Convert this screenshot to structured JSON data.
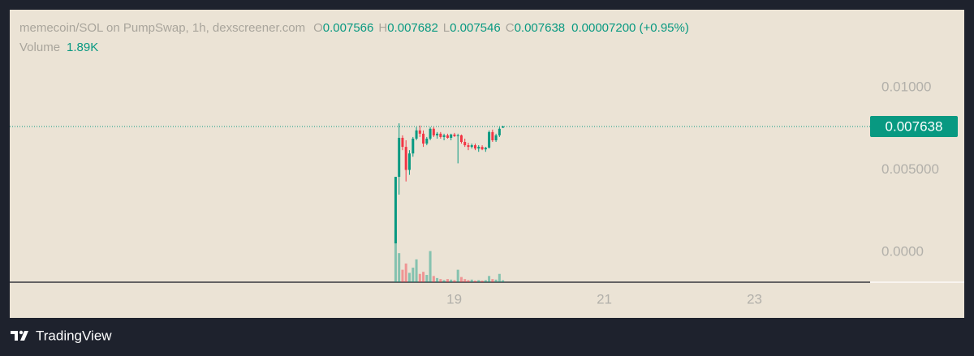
{
  "chart_data": {
    "type": "candlestick",
    "title": "memecoin/SOL on PumpSwap, 1h, dexscreener.com",
    "ohlc_letters": [
      "O",
      "H",
      "L",
      "C"
    ],
    "change": "0.00007200 (+0.95%)",
    "volume_name": "Volume",
    "volume_label": "1.89K",
    "x": [
      18.22,
      18.266,
      18.312,
      18.358,
      18.404,
      18.451,
      18.497,
      18.543,
      18.589,
      18.635,
      18.681,
      18.727,
      18.773,
      18.819,
      18.865,
      18.912,
      18.958,
      19.004,
      19.05,
      19.096,
      19.142,
      19.188,
      19.234,
      19.28,
      19.326,
      19.373,
      19.419,
      19.465,
      19.511,
      19.557,
      19.603,
      19.649
    ],
    "open": [
      0.00054,
      0.00458,
      0.00695,
      0.0064,
      0.005,
      0.006,
      0.0069,
      0.0074,
      0.0072,
      0.0066,
      0.0069,
      0.0075,
      0.0071,
      0.0072,
      0.007,
      0.0071,
      0.00695,
      0.00715,
      0.00705,
      0.0071,
      0.0067,
      0.0065,
      0.0064,
      0.0065,
      0.0063,
      0.0064,
      0.00625,
      0.00635,
      0.0073,
      0.0068,
      0.0071,
      0.007566
    ],
    "high": [
      0.00458,
      0.00783,
      0.0071,
      0.0068,
      0.0062,
      0.007,
      0.0076,
      0.0077,
      0.0074,
      0.007,
      0.0076,
      0.0076,
      0.0073,
      0.0073,
      0.0072,
      0.0072,
      0.0072,
      0.00725,
      0.0072,
      0.00715,
      0.0069,
      0.00665,
      0.0066,
      0.0066,
      0.0065,
      0.0065,
      0.0064,
      0.0074,
      0.00745,
      0.0072,
      0.0076,
      0.007682
    ],
    "low": [
      0.00054,
      0.0035,
      0.0062,
      0.0043,
      0.0047,
      0.0058,
      0.0068,
      0.007,
      0.0064,
      0.0065,
      0.0068,
      0.007,
      0.0069,
      0.0069,
      0.0068,
      0.0069,
      0.0068,
      0.007,
      0.0054,
      0.0066,
      0.0064,
      0.0062,
      0.0063,
      0.0062,
      0.0061,
      0.0062,
      0.0061,
      0.0063,
      0.0067,
      0.0067,
      0.007,
      0.007546
    ],
    "close": [
      0.00458,
      0.00695,
      0.0064,
      0.005,
      0.006,
      0.0069,
      0.0074,
      0.0072,
      0.0066,
      0.0069,
      0.0075,
      0.0071,
      0.0072,
      0.007,
      0.0071,
      0.00695,
      0.00715,
      0.00705,
      0.0071,
      0.0067,
      0.0065,
      0.0064,
      0.0065,
      0.0063,
      0.0064,
      0.00625,
      0.00635,
      0.0073,
      0.0068,
      0.0071,
      0.0075,
      0.007638
    ],
    "volume": [
      50000,
      28000,
      12000,
      18000,
      9000,
      14000,
      22000,
      8000,
      10000,
      7000,
      30000,
      6000,
      4000,
      3000,
      2000,
      3000,
      2500,
      2000,
      12000,
      5000,
      3000,
      2000,
      2500,
      1500,
      2000,
      1500,
      2000,
      6000,
      3000,
      2500,
      8000,
      1890
    ],
    "xlim": [
      13.08,
      24.54
    ],
    "xticks": [
      19,
      21,
      23
    ],
    "ylim": [
      -0.00182,
      0.01473
    ],
    "yticks": [
      {
        "value": 0.01,
        "label": "0.01000"
      },
      {
        "value": 0.005,
        "label": "0.005000"
      },
      {
        "value": 0,
        "label": "0.0000"
      }
    ],
    "volume_ylim": [
      0,
      62500
    ],
    "up_color": "#089981",
    "down_color": "#f23645",
    "last_price_line": true
  },
  "footer": {
    "brand": "TradingView"
  }
}
